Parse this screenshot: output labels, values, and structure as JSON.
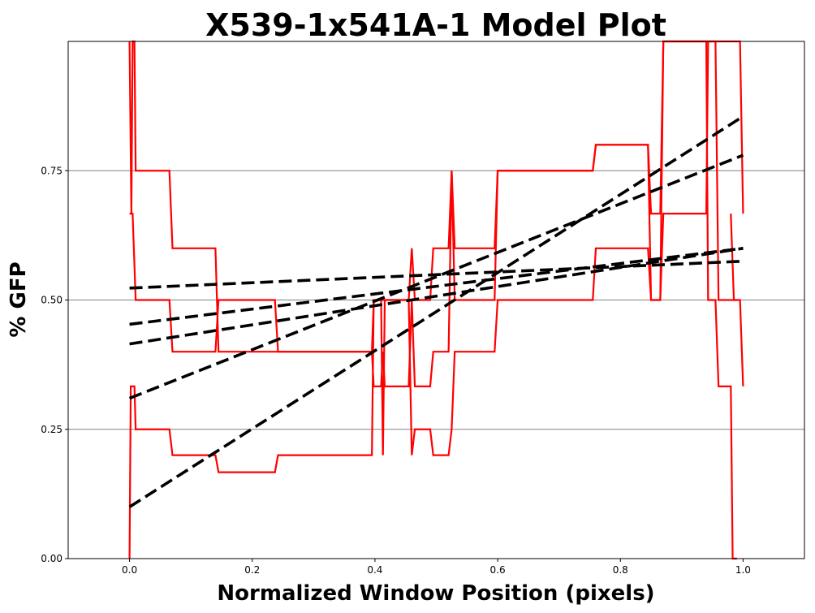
{
  "chart_data": {
    "type": "line",
    "title": "X539-1x541A-1 Model Plot",
    "xlabel": "Normalized Window Position (pixels)",
    "ylabel": "% GFP",
    "xlim": [
      -0.1,
      1.1
    ],
    "ylim": [
      0.0,
      1.0
    ],
    "x_ticks": [
      0.0,
      0.2,
      0.4,
      0.6,
      0.8,
      1.0
    ],
    "x_tick_labels": [
      "0.0",
      "0.2",
      "0.4",
      "0.6",
      "0.8",
      "1.0"
    ],
    "y_ticks": [
      0.0,
      0.25,
      0.5,
      0.75
    ],
    "y_tick_labels": [
      "0.00",
      "0.25",
      "0.50",
      "0.75"
    ],
    "grid": "horizontal",
    "colors": {
      "data": "#ff0000",
      "model": "#000000",
      "grid": "#808080"
    },
    "series": [
      {
        "style": "step",
        "color": "#ff0000",
        "points": [
          [
            0.0,
            0.0
          ],
          [
            0.002,
            0.333
          ],
          [
            0.008,
            0.333
          ],
          [
            0.01,
            0.25
          ],
          [
            0.065,
            0.25
          ],
          [
            0.07,
            0.2
          ],
          [
            0.14,
            0.2
          ],
          [
            0.145,
            0.167
          ],
          [
            0.237,
            0.167
          ],
          [
            0.242,
            0.2
          ],
          [
            0.395,
            0.2
          ],
          [
            0.398,
            0.5
          ],
          [
            0.41,
            0.5
          ],
          [
            0.413,
            0.2
          ],
          [
            0.416,
            0.5
          ],
          [
            0.455,
            0.5
          ],
          [
            0.46,
            0.2
          ],
          [
            0.465,
            0.25
          ],
          [
            0.49,
            0.25
          ],
          [
            0.495,
            0.2
          ],
          [
            0.52,
            0.2
          ],
          [
            0.525,
            0.25
          ],
          [
            0.53,
            0.4
          ],
          [
            0.595,
            0.4
          ],
          [
            0.6,
            0.5
          ],
          [
            0.755,
            0.5
          ],
          [
            0.76,
            0.6
          ],
          [
            0.845,
            0.6
          ],
          [
            0.85,
            0.5
          ],
          [
            0.865,
            0.5
          ],
          [
            0.87,
            1.0
          ],
          [
            0.94,
            1.0
          ],
          [
            0.943,
            0.5
          ],
          [
            0.955,
            0.5
          ],
          [
            0.96,
            0.333
          ],
          [
            0.98,
            0.333
          ],
          [
            0.983,
            0.0
          ],
          [
            0.99,
            0.0
          ]
        ]
      },
      {
        "style": "step",
        "color": "#ff0000",
        "points": [
          [
            0.0,
            0.667
          ],
          [
            0.005,
            0.667
          ],
          [
            0.01,
            0.5
          ],
          [
            0.065,
            0.5
          ],
          [
            0.07,
            0.4
          ],
          [
            0.14,
            0.4
          ],
          [
            0.145,
            0.5
          ],
          [
            0.237,
            0.5
          ],
          [
            0.242,
            0.4
          ],
          [
            0.395,
            0.4
          ],
          [
            0.398,
            0.333
          ],
          [
            0.41,
            0.333
          ],
          [
            0.413,
            0.4
          ],
          [
            0.416,
            0.333
          ],
          [
            0.455,
            0.333
          ],
          [
            0.46,
            0.5
          ],
          [
            0.465,
            0.333
          ],
          [
            0.49,
            0.333
          ],
          [
            0.495,
            0.4
          ],
          [
            0.52,
            0.4
          ],
          [
            0.525,
            0.75
          ],
          [
            0.53,
            0.5
          ],
          [
            0.595,
            0.5
          ],
          [
            0.6,
            0.75
          ],
          [
            0.755,
            0.75
          ],
          [
            0.76,
            0.8
          ],
          [
            0.845,
            0.8
          ],
          [
            0.85,
            0.5
          ],
          [
            0.865,
            0.5
          ],
          [
            0.87,
            0.667
          ],
          [
            0.94,
            0.667
          ],
          [
            0.943,
            1.0
          ],
          [
            0.955,
            1.0
          ],
          [
            0.96,
            0.5
          ],
          [
            0.98,
            0.5
          ],
          [
            0.983,
            0.5
          ],
          [
            0.99,
            0.5
          ]
        ]
      },
      {
        "style": "step",
        "color": "#ff0000",
        "points": [
          [
            0.0,
            1.0
          ],
          [
            0.003,
            0.667
          ],
          [
            0.005,
            1.0
          ],
          [
            0.008,
            1.0
          ],
          [
            0.01,
            0.75
          ],
          [
            0.065,
            0.75
          ],
          [
            0.07,
            0.6
          ],
          [
            0.14,
            0.6
          ],
          [
            0.145,
            0.4
          ],
          [
            0.395,
            0.4
          ],
          [
            0.398,
            0.5
          ],
          [
            0.455,
            0.5
          ],
          [
            0.46,
            0.6
          ],
          [
            0.465,
            0.5
          ],
          [
            0.49,
            0.5
          ],
          [
            0.495,
            0.6
          ],
          [
            0.52,
            0.6
          ],
          [
            0.525,
            0.75
          ],
          [
            0.53,
            0.6
          ],
          [
            0.595,
            0.6
          ],
          [
            0.6,
            0.75
          ],
          [
            0.755,
            0.75
          ],
          [
            0.76,
            0.8
          ],
          [
            0.845,
            0.8
          ],
          [
            0.85,
            0.667
          ],
          [
            0.865,
            0.667
          ],
          [
            0.87,
            1.0
          ],
          [
            0.955,
            1.0
          ],
          [
            0.96,
            1.0
          ],
          [
            0.995,
            1.0
          ],
          [
            1.0,
            0.667
          ]
        ]
      },
      {
        "style": "step",
        "color": "#ff0000",
        "points": [
          [
            0.98,
            0.667
          ],
          [
            0.985,
            0.5
          ],
          [
            0.995,
            0.5
          ],
          [
            1.0,
            0.333
          ]
        ]
      },
      {
        "style": "dashed",
        "color": "#000000",
        "points": [
          [
            0.0,
            0.1
          ],
          [
            1.0,
            0.855
          ]
        ]
      },
      {
        "style": "dashed",
        "color": "#000000",
        "points": [
          [
            0.0,
            0.31
          ],
          [
            1.0,
            0.78
          ]
        ]
      },
      {
        "style": "dashed",
        "color": "#000000",
        "points": [
          [
            0.0,
            0.415
          ],
          [
            1.0,
            0.6
          ]
        ]
      },
      {
        "style": "dashed",
        "color": "#000000",
        "points": [
          [
            0.0,
            0.453
          ],
          [
            1.0,
            0.6
          ]
        ]
      },
      {
        "style": "dashed",
        "color": "#000000",
        "points": [
          [
            0.0,
            0.523
          ],
          [
            1.0,
            0.575
          ]
        ]
      }
    ]
  }
}
